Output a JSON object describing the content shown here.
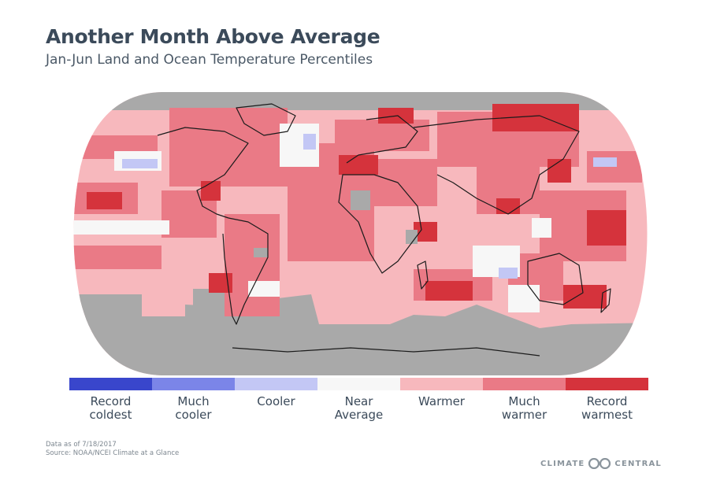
{
  "header": {
    "title": "Another Month Above Average",
    "subtitle": "Jan-Jun Land and Ocean Temperature Percentiles"
  },
  "map": {
    "projection": "Robinson",
    "no_data_color": "#a9a9a9",
    "coastline_color": "#1b1b1b"
  },
  "legend": {
    "items": [
      {
        "label_line1": "Record",
        "label_line2": "coldest",
        "color": "#3946cc"
      },
      {
        "label_line1": "Much",
        "label_line2": "cooler",
        "color": "#7b85e8"
      },
      {
        "label_line1": "Cooler",
        "label_line2": "",
        "color": "#c3c7f5"
      },
      {
        "label_line1": "Near",
        "label_line2": "Average",
        "color": "#f7f7f7"
      },
      {
        "label_line1": "Warmer",
        "label_line2": "",
        "color": "#f7b8bd"
      },
      {
        "label_line1": "Much",
        "label_line2": "warmer",
        "color": "#ea7a86"
      },
      {
        "label_line1": "Record",
        "label_line2": "warmest",
        "color": "#d5333c"
      }
    ]
  },
  "footer": {
    "date_note": "Data as of 7/18/2017",
    "source": "Source: NOAA/NCEI Climate at a Glance",
    "brand_left": "CLIMATE",
    "brand_right": "CENTRAL"
  }
}
